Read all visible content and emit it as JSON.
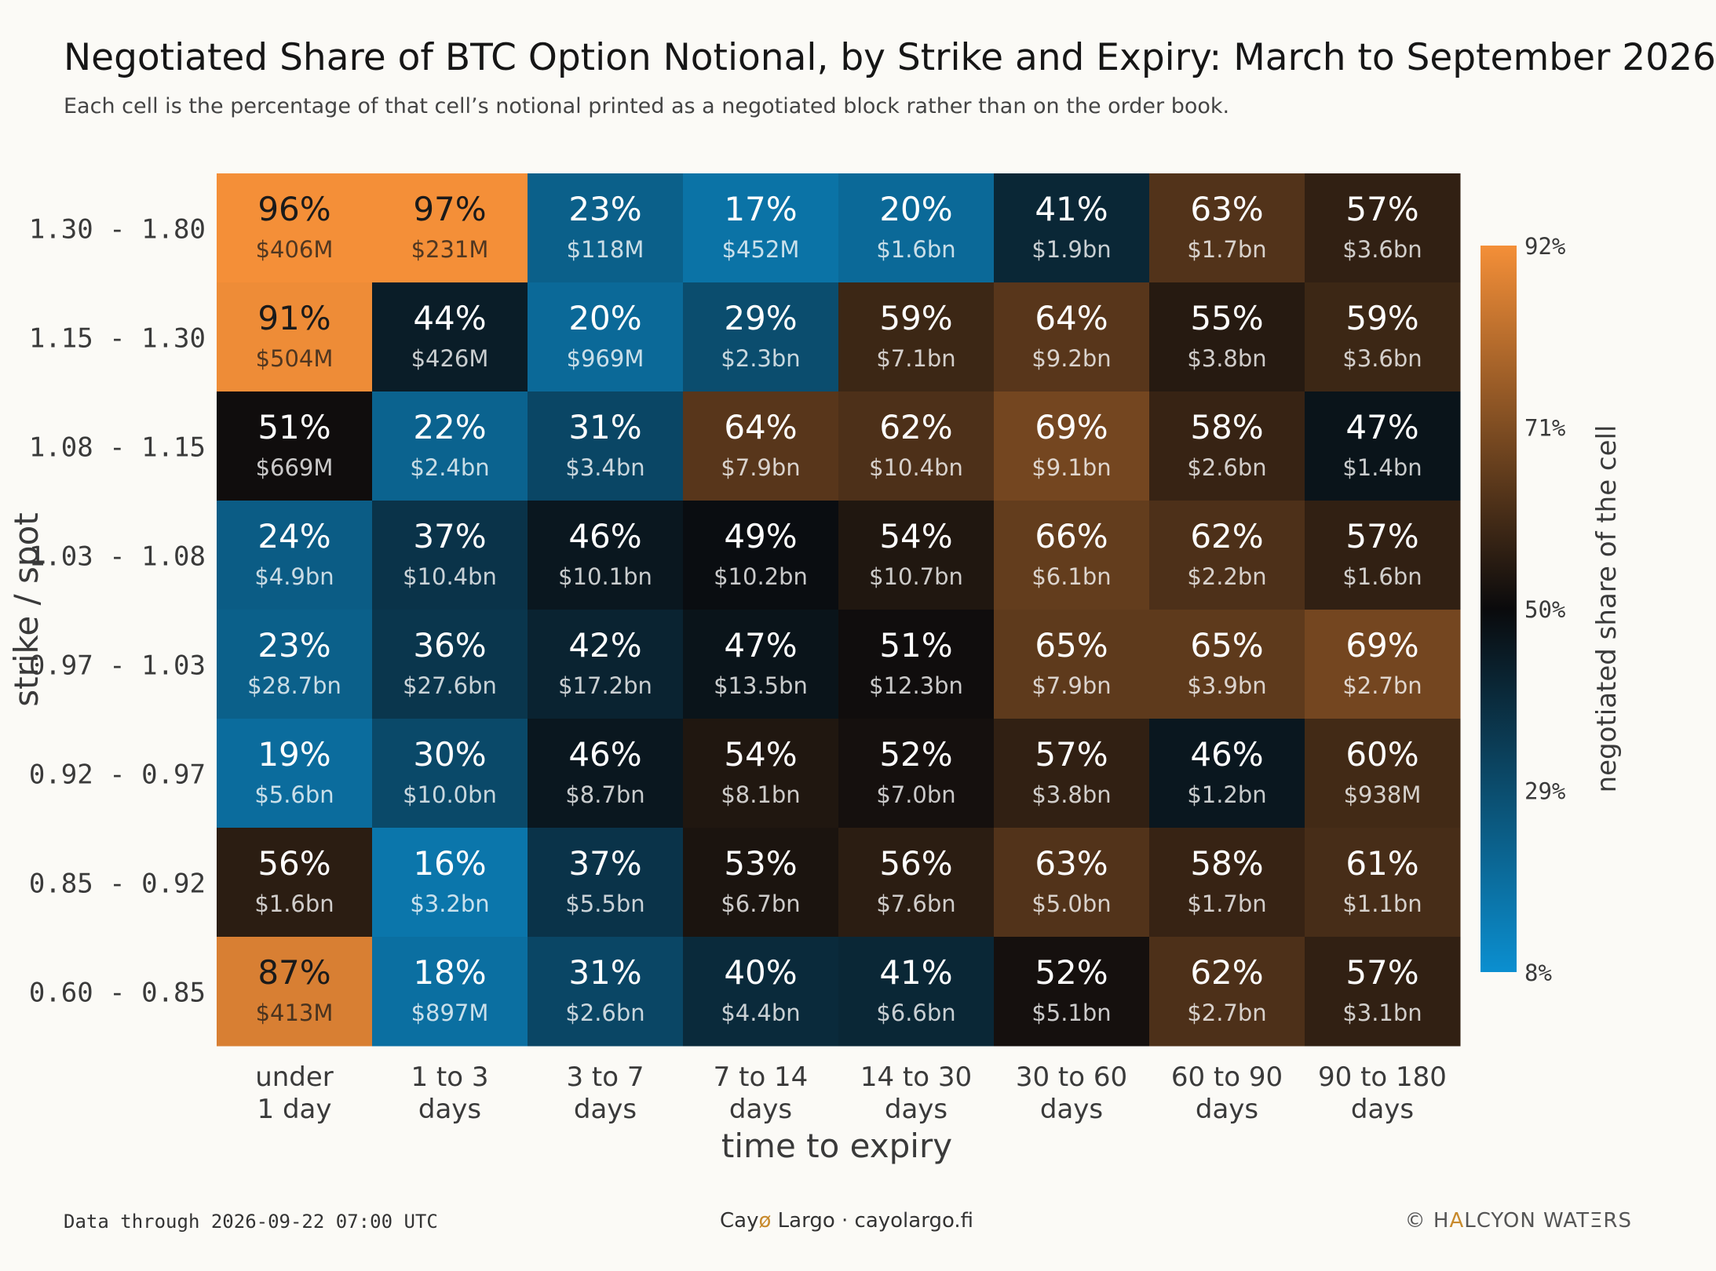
{
  "title": "Negotiated Share of BTC Option Notional, by Strike and Expiry: March to September 2026",
  "subtitle": "Each cell is the percentage of that cell’s notional printed as a negotiated block rather than on the order book.",
  "footer": {
    "data_through": "Data through 2026-09-22 07:00 UTC",
    "brand_prefix": "Cay",
    "brand_accent": "ø",
    "brand_suffix": " Largo",
    "separator": " · ",
    "site": "cayolargo.fi",
    "copyright_symbol": "© ",
    "copyright_pre": "H",
    "copyright_accent": "A",
    "copyright_post": "LCYON WATΞRS"
  },
  "colors": {
    "low": "#0b8fd0",
    "mid": "#0a0a0c",
    "high": "#f48f38",
    "label_text_light": "#ffffff",
    "label_text_dark": "#1a1a1a"
  },
  "chart_data": {
    "type": "heatmap",
    "title": "Negotiated Share of BTC Option Notional, by Strike and Expiry: March to September 2026",
    "subtitle": "Each cell is the percentage of that cell’s notional printed as a negotiated block rather than on the order book.",
    "xlabel": "time to expiry",
    "ylabel": "strike / spot",
    "x_categories": [
      [
        "under",
        "1 day"
      ],
      [
        "1 to 3",
        "days"
      ],
      [
        "3 to 7",
        "days"
      ],
      [
        "7 to 14",
        "days"
      ],
      [
        "14 to 30",
        "days"
      ],
      [
        "30 to 60",
        "days"
      ],
      [
        "60 to 90",
        "days"
      ],
      [
        "90 to 180",
        "days"
      ]
    ],
    "y_categories": [
      "1.30 - 1.80",
      "1.15 - 1.30",
      "1.08 - 1.15",
      "1.03 - 1.08",
      "0.97 - 1.03",
      "0.92 - 0.97",
      "0.85 - 0.92",
      "0.60 - 0.85"
    ],
    "values": [
      [
        96,
        97,
        23,
        17,
        20,
        41,
        63,
        57
      ],
      [
        91,
        44,
        20,
        29,
        59,
        64,
        55,
        59
      ],
      [
        51,
        22,
        31,
        64,
        62,
        69,
        58,
        47
      ],
      [
        24,
        37,
        46,
        49,
        54,
        66,
        62,
        57
      ],
      [
        23,
        36,
        42,
        47,
        51,
        65,
        65,
        69
      ],
      [
        19,
        30,
        46,
        54,
        52,
        57,
        46,
        60
      ],
      [
        56,
        16,
        37,
        53,
        56,
        63,
        58,
        61
      ],
      [
        87,
        18,
        31,
        40,
        41,
        52,
        62,
        57
      ]
    ],
    "value_labels": [
      [
        "96%",
        "97%",
        "23%",
        "17%",
        "20%",
        "41%",
        "63%",
        "57%"
      ],
      [
        "91%",
        "44%",
        "20%",
        "29%",
        "59%",
        "64%",
        "55%",
        "59%"
      ],
      [
        "51%",
        "22%",
        "31%",
        "64%",
        "62%",
        "69%",
        "58%",
        "47%"
      ],
      [
        "24%",
        "37%",
        "46%",
        "49%",
        "54%",
        "66%",
        "62%",
        "57%"
      ],
      [
        "23%",
        "36%",
        "42%",
        "47%",
        "51%",
        "65%",
        "65%",
        "69%"
      ],
      [
        "19%",
        "30%",
        "46%",
        "54%",
        "52%",
        "57%",
        "46%",
        "60%"
      ],
      [
        "56%",
        "16%",
        "37%",
        "53%",
        "56%",
        "63%",
        "58%",
        "61%"
      ],
      [
        "87%",
        "18%",
        "31%",
        "40%",
        "41%",
        "52%",
        "62%",
        "57%"
      ]
    ],
    "notional": [
      [
        "$406M",
        "$231M",
        "$118M",
        "$452M",
        "$1.6bn",
        "$1.9bn",
        "$1.7bn",
        "$3.6bn"
      ],
      [
        "$504M",
        "$426M",
        "$969M",
        "$2.3bn",
        "$7.1bn",
        "$9.2bn",
        "$3.8bn",
        "$3.6bn"
      ],
      [
        "$669M",
        "$2.4bn",
        "$3.4bn",
        "$7.9bn",
        "$10.4bn",
        "$9.1bn",
        "$2.6bn",
        "$1.4bn"
      ],
      [
        "$4.9bn",
        "$10.4bn",
        "$10.1bn",
        "$10.2bn",
        "$10.7bn",
        "$6.1bn",
        "$2.2bn",
        "$1.6bn"
      ],
      [
        "$28.7bn",
        "$27.6bn",
        "$17.2bn",
        "$13.5bn",
        "$12.3bn",
        "$7.9bn",
        "$3.9bn",
        "$2.7bn"
      ],
      [
        "$5.6bn",
        "$10.0bn",
        "$8.7bn",
        "$8.1bn",
        "$7.0bn",
        "$3.8bn",
        "$1.2bn",
        "$938M"
      ],
      [
        "$1.6bn",
        "$3.2bn",
        "$5.5bn",
        "$6.7bn",
        "$7.6bn",
        "$5.0bn",
        "$1.7bn",
        "$1.1bn"
      ],
      [
        "$413M",
        "$897M",
        "$2.6bn",
        "$4.4bn",
        "$6.6bn",
        "$5.1bn",
        "$2.7bn",
        "$3.1bn"
      ]
    ],
    "colorbar": {
      "label": "negotiated share of the cell",
      "range": [
        8,
        92
      ],
      "center": 50,
      "tick_values": [
        92,
        71,
        50,
        29,
        8
      ],
      "tick_labels": [
        "92%",
        "71%",
        "50%",
        "29%",
        "8%"
      ],
      "placement": "right"
    },
    "grid": false
  }
}
